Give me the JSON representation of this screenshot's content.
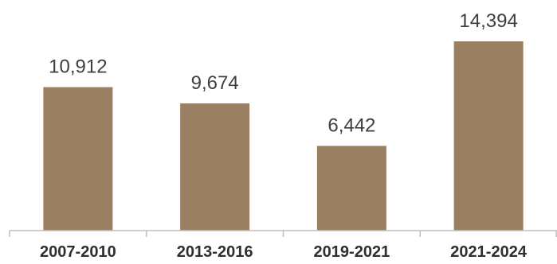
{
  "chart_data": {
    "type": "bar",
    "categories": [
      "2007-2010",
      "2013-2016",
      "2019-2021",
      "2021-2024"
    ],
    "values": [
      10912,
      9674,
      6442,
      14394
    ],
    "value_labels": [
      "10,912",
      "9,674",
      "6,442",
      "14,394"
    ],
    "title": "",
    "xlabel": "",
    "ylabel": "",
    "ylim": [
      0,
      14394
    ],
    "grid": false,
    "legend": "none",
    "bar_color": "#9b7f62",
    "axis_color": "#bfbfbf"
  }
}
